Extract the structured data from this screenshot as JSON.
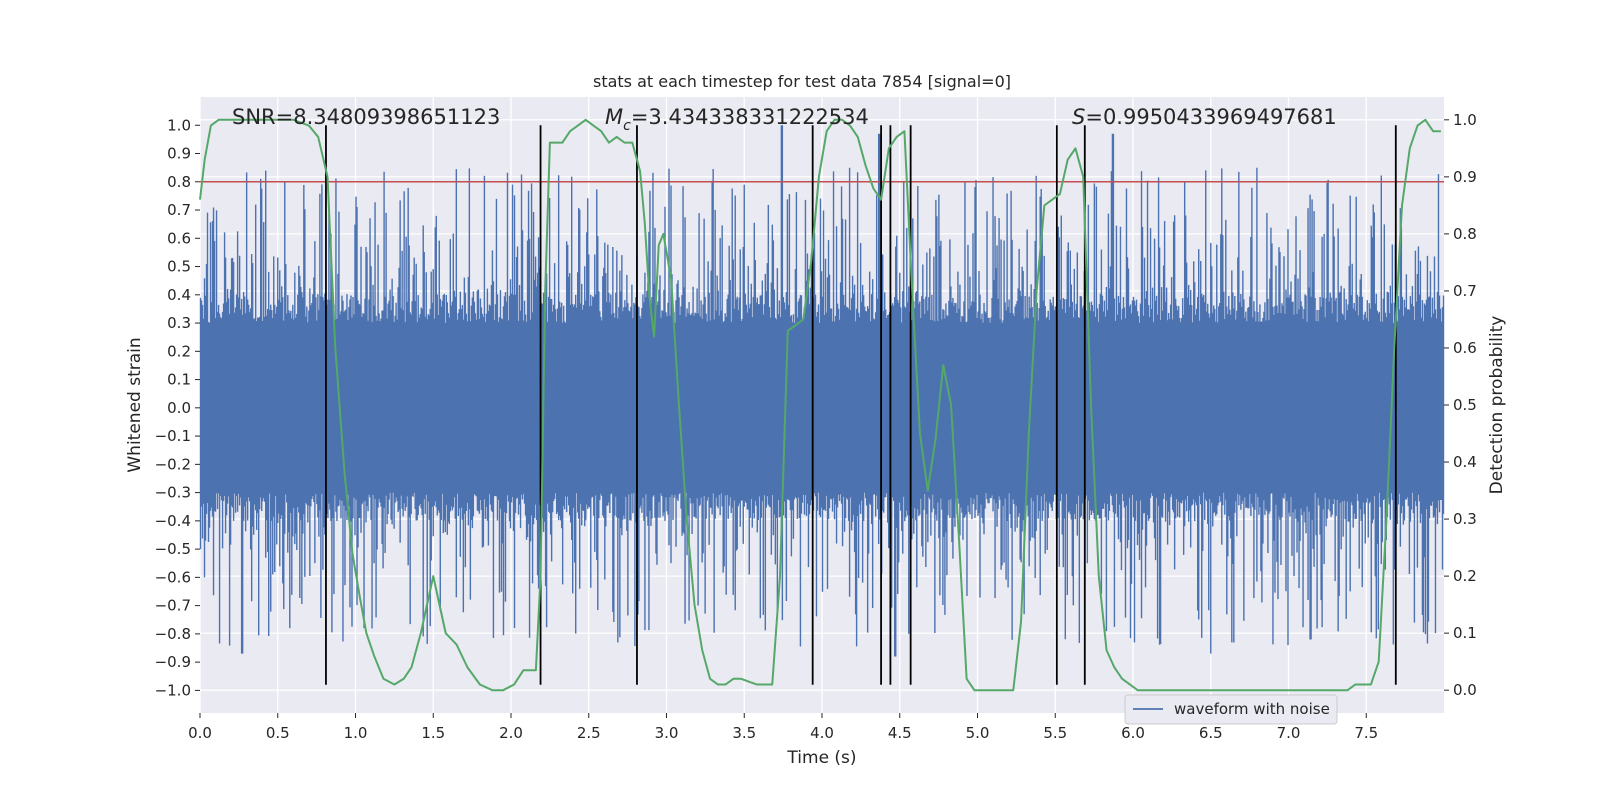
{
  "chart_data": {
    "type": "line",
    "title": "stats at each timestep for test data 7854 [signal=0]",
    "xlabel": "Time (s)",
    "ylabel": "Whitened strain",
    "ylabel_right": "Detection probability",
    "xlim": [
      0.0,
      8.0
    ],
    "ylim": [
      -1.08,
      1.1
    ],
    "ylim_right": [
      -0.04,
      1.04
    ],
    "x_ticks": [
      0.0,
      0.5,
      1.0,
      1.5,
      2.0,
      2.5,
      3.0,
      3.5,
      4.0,
      4.5,
      5.0,
      5.5,
      6.0,
      6.5,
      7.0,
      7.5
    ],
    "x_tick_labels": [
      "0.0",
      "0.5",
      "1.0",
      "1.5",
      "2.0",
      "2.5",
      "3.0",
      "3.5",
      "4.0",
      "4.5",
      "5.0",
      "5.5",
      "6.0",
      "6.5",
      "7.0",
      "7.5"
    ],
    "y_ticks": [
      -1.0,
      -0.9,
      -0.8,
      -0.7,
      -0.6,
      -0.5,
      -0.4,
      -0.3,
      -0.2,
      -0.1,
      0.0,
      0.1,
      0.2,
      0.3,
      0.4,
      0.5,
      0.6,
      0.7,
      0.8,
      0.9,
      1.0
    ],
    "y_tick_labels": [
      "−1.0",
      "−0.9",
      "−0.8",
      "−0.7",
      "−0.6",
      "−0.5",
      "−0.4",
      "−0.3",
      "−0.2",
      "−0.1",
      "0.0",
      "0.1",
      "0.2",
      "0.3",
      "0.4",
      "0.5",
      "0.6",
      "0.7",
      "0.8",
      "0.9",
      "1.0"
    ],
    "y_ticks_right": [
      0.0,
      0.1,
      0.2,
      0.3,
      0.4,
      0.5,
      0.6,
      0.7,
      0.8,
      0.9,
      1.0
    ],
    "y_tick_labels_right": [
      "0.0",
      "0.1",
      "0.2",
      "0.3",
      "0.4",
      "0.5",
      "0.6",
      "0.7",
      "0.8",
      "0.9",
      "1.0"
    ],
    "annotations": {
      "snr": "SNR=8.34809398651123",
      "mc_symbol": "M",
      "mc_subscript": "c",
      "mc_value": "=3.434338331222534",
      "s_symbol": "S",
      "s_value": "=0.9950433969497681"
    },
    "threshold": {
      "value": 0.8,
      "color": "#c44e52"
    },
    "vertical_lines": {
      "x": [
        0.81,
        2.19,
        2.81,
        3.94,
        4.38,
        4.44,
        4.57,
        5.51,
        5.69,
        7.69
      ],
      "ymin": -0.98,
      "ymax": 1.0,
      "color": "#000000"
    },
    "series": [
      {
        "name": "waveform with noise",
        "axis": "left",
        "color": "#4c72b0",
        "envelope_core": 0.4,
        "envelope_peak": 0.85,
        "notable_peaks_x": [
          0.27,
          3.74,
          4.37,
          4.47,
          5.87,
          6.5,
          7.14
        ],
        "notable_peaks_y": [
          -0.87,
          1.0,
          0.97,
          -0.88,
          0.97,
          -0.87,
          -0.82
        ]
      },
      {
        "name": "detection probability",
        "axis": "right",
        "color": "#55a868",
        "x": [
          0.0,
          0.03,
          0.07,
          0.12,
          0.2,
          0.3,
          0.4,
          0.5,
          0.6,
          0.7,
          0.76,
          0.82,
          0.87,
          0.93,
          0.98,
          1.03,
          1.07,
          1.12,
          1.18,
          1.25,
          1.31,
          1.36,
          1.42,
          1.5,
          1.58,
          1.65,
          1.72,
          1.8,
          1.88,
          1.95,
          2.02,
          2.08,
          2.13,
          2.16,
          2.19,
          2.22,
          2.25,
          2.28,
          2.3,
          2.33,
          2.38,
          2.43,
          2.48,
          2.53,
          2.58,
          2.63,
          2.68,
          2.73,
          2.78,
          2.83,
          2.86,
          2.89,
          2.92,
          2.95,
          2.98,
          3.03,
          3.08,
          3.13,
          3.18,
          3.23,
          3.28,
          3.33,
          3.38,
          3.43,
          3.48,
          3.53,
          3.58,
          3.63,
          3.68,
          3.73,
          3.78,
          3.83,
          3.88,
          3.93,
          3.98,
          4.03,
          4.08,
          4.13,
          4.18,
          4.23,
          4.28,
          4.33,
          4.38,
          4.43,
          4.48,
          4.53,
          4.58,
          4.63,
          4.68,
          4.73,
          4.78,
          4.83,
          4.88,
          4.93,
          4.98,
          5.03,
          5.08,
          5.13,
          5.18,
          5.23,
          5.28,
          5.33,
          5.38,
          5.43,
          5.48,
          5.53,
          5.58,
          5.63,
          5.68,
          5.73,
          5.78,
          5.83,
          5.88,
          5.93,
          5.98,
          6.03,
          6.08,
          6.13,
          6.18,
          6.23,
          6.28,
          6.33,
          6.38,
          6.43,
          6.48,
          6.53,
          6.58,
          6.63,
          6.68,
          6.73,
          6.78,
          6.83,
          6.88,
          6.93,
          6.98,
          7.03,
          7.08,
          7.13,
          7.18,
          7.23,
          7.28,
          7.33,
          7.38,
          7.43,
          7.48,
          7.53,
          7.58,
          7.63,
          7.68,
          7.73,
          7.78,
          7.83,
          7.88,
          7.93,
          7.98
        ],
        "values": [
          0.86,
          0.93,
          0.99,
          1.0,
          1.0,
          1.0,
          1.0,
          1.0,
          1.0,
          0.99,
          0.97,
          0.9,
          0.6,
          0.38,
          0.24,
          0.16,
          0.1,
          0.06,
          0.02,
          0.01,
          0.02,
          0.04,
          0.1,
          0.2,
          0.1,
          0.08,
          0.04,
          0.01,
          0.0,
          0.0,
          0.01,
          0.035,
          0.035,
          0.035,
          0.2,
          0.7,
          0.96,
          0.96,
          0.96,
          0.96,
          0.98,
          0.99,
          1.0,
          0.99,
          0.98,
          0.96,
          0.97,
          0.96,
          0.96,
          0.91,
          0.82,
          0.69,
          0.62,
          0.78,
          0.8,
          0.72,
          0.5,
          0.3,
          0.15,
          0.07,
          0.02,
          0.01,
          0.01,
          0.02,
          0.02,
          0.015,
          0.01,
          0.01,
          0.01,
          0.2,
          0.63,
          0.64,
          0.65,
          0.75,
          0.9,
          0.98,
          1.0,
          1.0,
          0.99,
          0.97,
          0.92,
          0.88,
          0.86,
          0.95,
          0.97,
          0.98,
          0.7,
          0.45,
          0.35,
          0.44,
          0.57,
          0.5,
          0.27,
          0.02,
          0.0,
          0.0,
          0.0,
          0.0,
          0.0,
          0.0,
          0.12,
          0.45,
          0.7,
          0.85,
          0.86,
          0.87,
          0.93,
          0.95,
          0.9,
          0.5,
          0.2,
          0.07,
          0.04,
          0.02,
          0.01,
          0.0,
          0.0,
          0.0,
          0.0,
          0.0,
          0.0,
          0.0,
          0.0,
          0.0,
          0.0,
          0.0,
          0.0,
          0.0,
          0.0,
          0.0,
          0.0,
          0.0,
          0.0,
          0.0,
          0.0,
          0.0,
          0.0,
          0.0,
          0.0,
          0.0,
          0.0,
          0.0,
          0.0,
          0.01,
          0.01,
          0.01,
          0.05,
          0.3,
          0.6,
          0.85,
          0.95,
          0.99,
          1.0,
          0.98,
          0.98
        ]
      }
    ],
    "legend": {
      "label": "waveform with noise",
      "placement": "bottom-right"
    }
  }
}
